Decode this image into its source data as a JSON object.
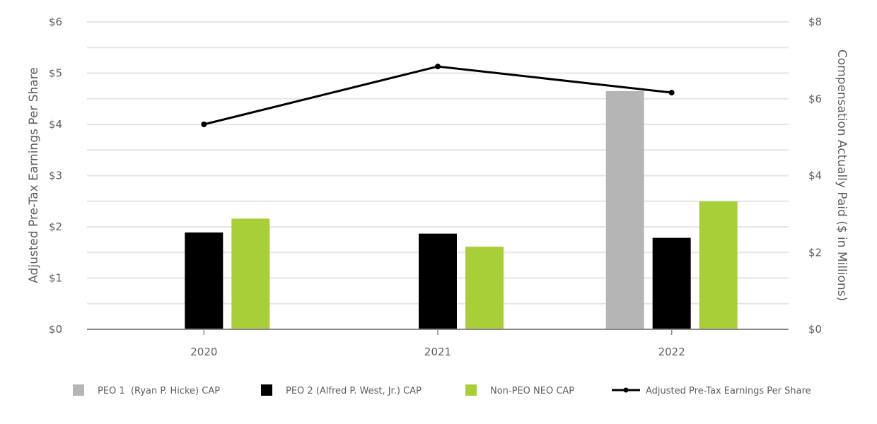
{
  "chart_data": {
    "type": "bar",
    "categories": [
      "2020",
      "2021",
      "2022"
    ],
    "bar_series": [
      {
        "name": "PEO 1  (Ryan P. Hicke) CAP",
        "color": "#b5b5b5",
        "values": [
          null,
          null,
          6.2
        ]
      },
      {
        "name": "PEO 2 (Alfred P. West, Jr.) CAP",
        "color": "#000000",
        "values": [
          2.52,
          2.49,
          2.38
        ]
      },
      {
        "name": "Non-PEO NEO CAP",
        "color": "#a8cf38",
        "values": [
          2.88,
          2.15,
          3.33
        ]
      }
    ],
    "line_series": {
      "name": "Adjusted Pre-Tax Earnings Per Share",
      "color": "#000000",
      "values": [
        4.0,
        5.13,
        4.62
      ]
    },
    "left_axis": {
      "label": "Adjusted Pre-Tax Earnings Per Share",
      "ticks": [
        "$0",
        "$1",
        "$2",
        "$3",
        "$4",
        "$5",
        "$6"
      ],
      "ylim": [
        0,
        6
      ]
    },
    "right_axis": {
      "label": "Compensation Actually Paid ($ in Millions)",
      "ticks": [
        "$0",
        "$2",
        "$4",
        "$6",
        "$8"
      ],
      "ylim": [
        0,
        8
      ]
    },
    "grid": true,
    "legend_position": "bottom"
  }
}
